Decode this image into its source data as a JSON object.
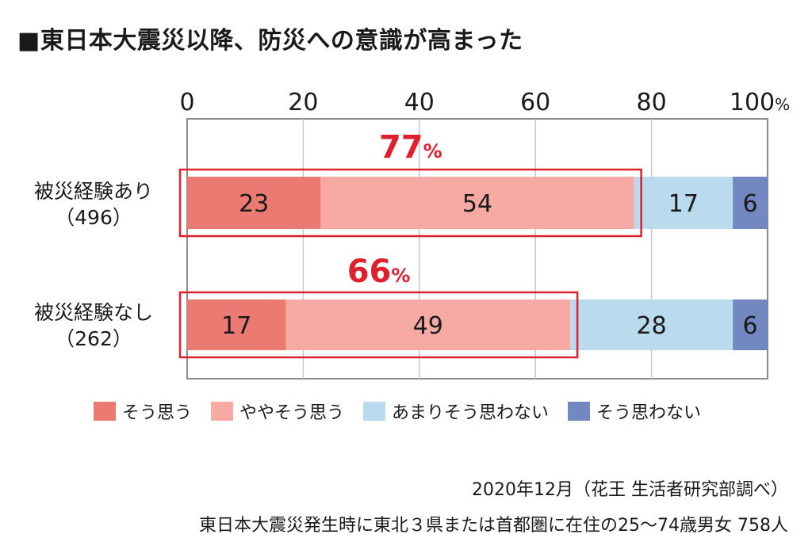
{
  "title": "■東日本大震災以降、防災への意識が高まった",
  "chart_data": {
    "type": "bar",
    "orientation": "horizontal",
    "stacked": true,
    "xlim": [
      0,
      100
    ],
    "x_ticks": [
      "0",
      "20",
      "40",
      "60",
      "80",
      "100"
    ],
    "x_unit": "%",
    "grid": true,
    "legend_position": "bottom",
    "categories": [
      {
        "name": "被災経験あり",
        "count": "（496）"
      },
      {
        "name": "被災経験なし",
        "count": "（262）"
      }
    ],
    "series": [
      {
        "name": "そう思う",
        "color": "#ea7a72",
        "values": [
          23,
          17
        ]
      },
      {
        "name": "ややそう思う",
        "color": "#f7aaa3",
        "values": [
          54,
          49
        ]
      },
      {
        "name": "あまりそう思わない",
        "color": "#badbee",
        "values": [
          17,
          28
        ]
      },
      {
        "name": "そう思わない",
        "color": "#7288c0",
        "values": [
          6,
          6
        ]
      }
    ],
    "annotations": [
      {
        "value": "77",
        "unit": "%",
        "color": "#e0202e"
      },
      {
        "value": "66",
        "unit": "%",
        "color": "#e0202e"
      }
    ]
  },
  "notes": {
    "line1": "2020年12月（花王 生活者研究部調べ）",
    "line2": "東日本大震災発生時に東北３県または首都圏に在住の25〜74歳男女 758人"
  }
}
